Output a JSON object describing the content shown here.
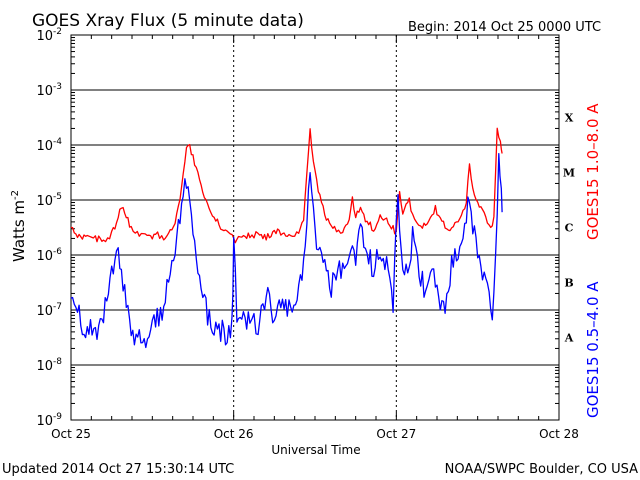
{
  "chart_data": {
    "type": "line",
    "title": "GOES Xray Flux (5 minute data)",
    "begin_label": "Begin:  2014 Oct 25 0000 UTC",
    "ylabel": "Watts m",
    "ylabel_sup": "-2",
    "xlabel": "Universal Time",
    "yscale": "log",
    "ylim": [
      1e-09,
      0.01
    ],
    "xlim_days": [
      0,
      3
    ],
    "x_ticks": [
      "Oct 25",
      "Oct 26",
      "Oct 27",
      "Oct 28"
    ],
    "y_ticks": [
      {
        "base": "10",
        "exp": "-9"
      },
      {
        "base": "10",
        "exp": "-8"
      },
      {
        "base": "10",
        "exp": "-7"
      },
      {
        "base": "10",
        "exp": "-6"
      },
      {
        "base": "10",
        "exp": "-5"
      },
      {
        "base": "10",
        "exp": "-4"
      },
      {
        "base": "10",
        "exp": "-3"
      },
      {
        "base": "10",
        "exp": "-2"
      }
    ],
    "flare_classes": [
      {
        "label": "A",
        "level": 1e-08
      },
      {
        "label": "B",
        "level": 1e-07
      },
      {
        "label": "C",
        "level": 1e-06
      },
      {
        "label": "M",
        "level": 1e-05
      },
      {
        "label": "X",
        "level": 0.0001
      }
    ],
    "grid": "horizontal lines at decades 1e-8 to 1e-3",
    "series": [
      {
        "name": "GOES15 1.0–8.0 A",
        "color": "#ff0000",
        "points": [
          [
            0.0,
            3e-06
          ],
          [
            0.05,
            2.2e-06
          ],
          [
            0.1,
            2e-06
          ],
          [
            0.15,
            2e-06
          ],
          [
            0.2,
            1.9e-06
          ],
          [
            0.25,
            2.4e-06
          ],
          [
            0.28,
            4e-06
          ],
          [
            0.31,
            8e-06
          ],
          [
            0.34,
            5e-06
          ],
          [
            0.37,
            3e-06
          ],
          [
            0.42,
            2.3e-06
          ],
          [
            0.48,
            2e-06
          ],
          [
            0.52,
            2.5e-06
          ],
          [
            0.57,
            2e-06
          ],
          [
            0.62,
            3e-06
          ],
          [
            0.65,
            5e-06
          ],
          [
            0.67,
            1e-05
          ],
          [
            0.69,
            3e-05
          ],
          [
            0.71,
            8.5e-05
          ],
          [
            0.73,
            9e-05
          ],
          [
            0.75,
            6e-05
          ],
          [
            0.78,
            3e-05
          ],
          [
            0.81,
            1.5e-05
          ],
          [
            0.84,
            8e-06
          ],
          [
            0.87,
            5e-06
          ],
          [
            0.9,
            4e-06
          ],
          [
            0.93,
            3e-06
          ],
          [
            0.96,
            2.5e-06
          ],
          [
            0.99,
            2.2e-06
          ],
          [
            1.0,
            1.8e-06
          ],
          [
            1.05,
            2.4e-06
          ],
          [
            1.1,
            2.2e-06
          ],
          [
            1.15,
            2.5e-06
          ],
          [
            1.2,
            2e-06
          ],
          [
            1.25,
            2.8e-06
          ],
          [
            1.3,
            2.3e-06
          ],
          [
            1.35,
            2.1e-06
          ],
          [
            1.4,
            2.5e-06
          ],
          [
            1.43,
            4e-06
          ],
          [
            1.45,
            3e-05
          ],
          [
            1.47,
            0.00019
          ],
          [
            1.49,
            5e-05
          ],
          [
            1.52,
            1.5e-05
          ],
          [
            1.55,
            7e-06
          ],
          [
            1.58,
            4e-06
          ],
          [
            1.62,
            3e-06
          ],
          [
            1.67,
            2.8e-06
          ],
          [
            1.7,
            3.5e-06
          ],
          [
            1.73,
            1e-05
          ],
          [
            1.75,
            5e-06
          ],
          [
            1.78,
            7e-06
          ],
          [
            1.82,
            4e-06
          ],
          [
            1.86,
            3e-06
          ],
          [
            1.9,
            5e-06
          ],
          [
            1.95,
            4e-06
          ],
          [
            2.0,
            2.5e-06
          ],
          [
            2.02,
            1.5e-05
          ],
          [
            2.04,
            6e-06
          ],
          [
            2.08,
            1e-05
          ],
          [
            2.1,
            5e-06
          ],
          [
            2.15,
            3e-06
          ],
          [
            2.2,
            4e-06
          ],
          [
            2.24,
            7e-06
          ],
          [
            2.28,
            4e-06
          ],
          [
            2.32,
            3e-06
          ],
          [
            2.36,
            3.5e-06
          ],
          [
            2.4,
            5e-06
          ],
          [
            2.43,
            1e-05
          ],
          [
            2.45,
            4e-05
          ],
          [
            2.47,
            1.5e-05
          ],
          [
            2.5,
            9e-06
          ],
          [
            2.53,
            6e-06
          ],
          [
            2.56,
            4e-06
          ],
          [
            2.58,
            3e-06
          ],
          [
            2.6,
            5e-06
          ],
          [
            2.62,
            0.0002
          ],
          [
            2.64,
            0.00012
          ],
          [
            2.65,
            7e-05
          ]
        ]
      },
      {
        "name": "GOES15 0.5–4.0 A",
        "color": "#0000ff",
        "points": [
          [
            0.0,
            2.5e-07
          ],
          [
            0.03,
            1.5e-07
          ],
          [
            0.06,
            6e-08
          ],
          [
            0.09,
            4e-08
          ],
          [
            0.12,
            6e-08
          ],
          [
            0.15,
            3e-08
          ],
          [
            0.18,
            5e-08
          ],
          [
            0.21,
            1e-07
          ],
          [
            0.24,
            3e-07
          ],
          [
            0.27,
            7e-07
          ],
          [
            0.29,
            1.1e-06
          ],
          [
            0.31,
            6e-07
          ],
          [
            0.34,
            1e-07
          ],
          [
            0.37,
            4e-08
          ],
          [
            0.4,
            3e-08
          ],
          [
            0.44,
            4e-08
          ],
          [
            0.48,
            3e-08
          ],
          [
            0.52,
            6e-08
          ],
          [
            0.56,
            1e-07
          ],
          [
            0.6,
            4e-07
          ],
          [
            0.63,
            1e-06
          ],
          [
            0.66,
            4e-06
          ],
          [
            0.68,
            8e-06
          ],
          [
            0.7,
            2.5e-05
          ],
          [
            0.72,
            1.2e-05
          ],
          [
            0.74,
            5e-06
          ],
          [
            0.76,
            1.5e-06
          ],
          [
            0.78,
            6e-07
          ],
          [
            0.8,
            2.5e-07
          ],
          [
            0.83,
            1e-07
          ],
          [
            0.87,
            6e-08
          ],
          [
            0.91,
            5e-08
          ],
          [
            0.95,
            3e-08
          ],
          [
            0.99,
            5e-08
          ],
          [
            1.0,
            2e-06
          ],
          [
            1.02,
            1e-07
          ],
          [
            1.06,
            6e-08
          ],
          [
            1.1,
            8e-08
          ],
          [
            1.15,
            5e-08
          ],
          [
            1.2,
            2e-07
          ],
          [
            1.24,
            7e-08
          ],
          [
            1.28,
            1e-07
          ],
          [
            1.32,
            1.5e-07
          ],
          [
            1.36,
            6e-08
          ],
          [
            1.4,
            2e-07
          ],
          [
            1.43,
            8e-07
          ],
          [
            1.45,
            5e-06
          ],
          [
            1.47,
            3e-05
          ],
          [
            1.49,
            6e-06
          ],
          [
            1.52,
            1e-06
          ],
          [
            1.56,
            5e-07
          ],
          [
            1.6,
            2e-07
          ],
          [
            1.64,
            8e-07
          ],
          [
            1.68,
            4e-07
          ],
          [
            1.72,
            2e-06
          ],
          [
            1.75,
            8e-07
          ],
          [
            1.78,
            3e-06
          ],
          [
            1.82,
            1.5e-06
          ],
          [
            1.86,
            5e-07
          ],
          [
            1.9,
            1.5e-06
          ],
          [
            1.94,
            7e-07
          ],
          [
            1.98,
            1e-07
          ],
          [
            2.01,
            1.5e-05
          ],
          [
            2.03,
            1e-06
          ],
          [
            2.07,
            5e-07
          ],
          [
            2.1,
            2e-06
          ],
          [
            2.14,
            6e-07
          ],
          [
            2.18,
            2e-07
          ],
          [
            2.22,
            8e-07
          ],
          [
            2.26,
            2e-07
          ],
          [
            2.3,
            7e-08
          ],
          [
            2.34,
            6e-07
          ],
          [
            2.38,
            1e-06
          ],
          [
            2.42,
            3e-06
          ],
          [
            2.45,
            1.5e-05
          ],
          [
            2.47,
            4e-06
          ],
          [
            2.5,
            8e-07
          ],
          [
            2.54,
            3e-07
          ],
          [
            2.57,
            2e-07
          ],
          [
            2.59,
            1e-07
          ],
          [
            2.61,
            1e-06
          ],
          [
            2.63,
            6e-05
          ],
          [
            2.645,
            2e-05
          ],
          [
            2.65,
            6e-06
          ]
        ]
      }
    ]
  },
  "footer": {
    "updated": "Updated 2014 Oct 27 15:30:14 UTC",
    "credit": "NOAA/SWPC Boulder, CO USA"
  }
}
